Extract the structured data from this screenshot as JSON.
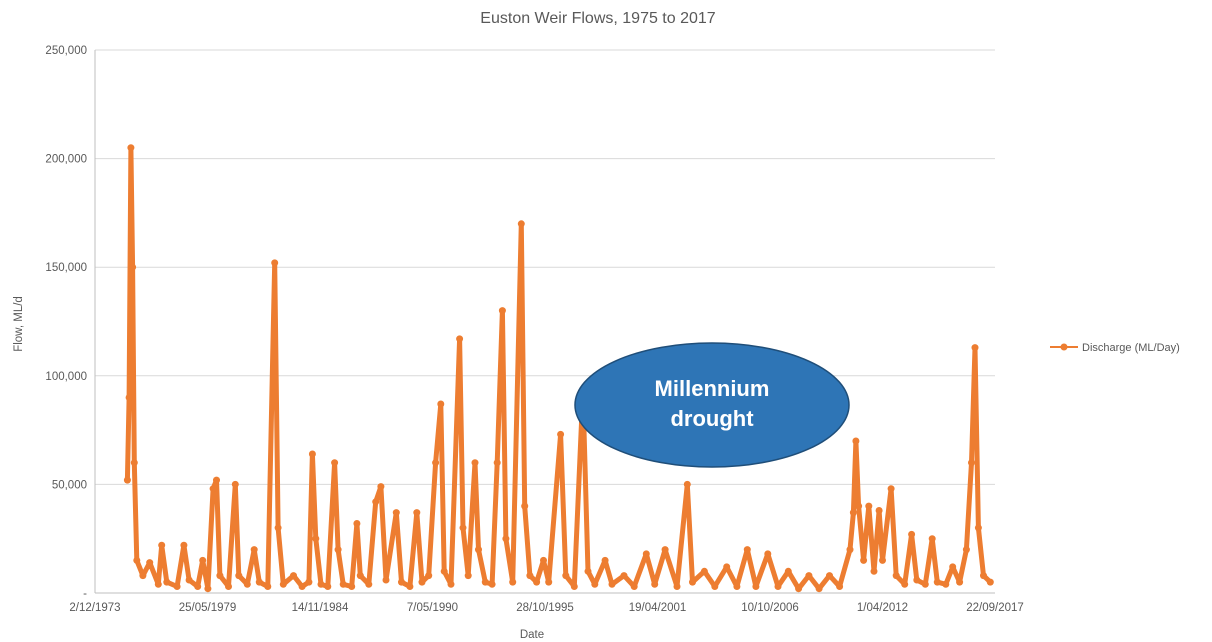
{
  "chart_data": {
    "type": "line",
    "title": "Euston Weir Flows, 1975 to 2017",
    "xlabel": "Date",
    "ylabel": "Flow, ML/d",
    "x_ticks": [
      "2/12/1973",
      "25/05/1979",
      "14/11/1984",
      "7/05/1990",
      "28/10/1995",
      "19/04/2001",
      "10/10/2006",
      "1/04/2012",
      "22/09/2017"
    ],
    "y_ticks": [
      "-",
      "50,000",
      "100,000",
      "150,000",
      "200,000",
      "250,000"
    ],
    "xlim": [
      "1973-12-02",
      "2017-09-22"
    ],
    "ylim": [
      0,
      250000
    ],
    "grid": true,
    "legend_position": "right",
    "colors": {
      "series": "#ED7D31",
      "grid": "#D9D9D9",
      "axis": "#BFBFBF",
      "annotation_fill": "#2E75B6",
      "annotation_stroke": "#1F4E79"
    },
    "annotation": {
      "line1": "Millennium",
      "line2": "drought"
    },
    "series": [
      {
        "name": "Discharge (ML/Day)",
        "points": [
          [
            "1975-07-01",
            52000
          ],
          [
            "1975-08-01",
            90000
          ],
          [
            "1975-09-01",
            205000
          ],
          [
            "1975-10-01",
            150000
          ],
          [
            "1975-11-01",
            60000
          ],
          [
            "1975-12-15",
            15000
          ],
          [
            "1976-04-01",
            8000
          ],
          [
            "1976-08-01",
            14000
          ],
          [
            "1977-01-01",
            4000
          ],
          [
            "1977-03-01",
            22000
          ],
          [
            "1977-06-01",
            5000
          ],
          [
            "1977-12-01",
            3000
          ],
          [
            "1978-04-01",
            22000
          ],
          [
            "1978-07-01",
            6000
          ],
          [
            "1978-12-01",
            3000
          ],
          [
            "1979-03-01",
            15000
          ],
          [
            "1979-06-01",
            2000
          ],
          [
            "1979-09-01",
            48000
          ],
          [
            "1979-11-01",
            52000
          ],
          [
            "1980-01-01",
            8000
          ],
          [
            "1980-06-01",
            3000
          ],
          [
            "1980-10-01",
            50000
          ],
          [
            "1980-12-01",
            8000
          ],
          [
            "1981-05-01",
            4000
          ],
          [
            "1981-09-01",
            20000
          ],
          [
            "1981-12-01",
            5000
          ],
          [
            "1982-05-01",
            3000
          ],
          [
            "1982-09-01",
            152000
          ],
          [
            "1982-11-01",
            30000
          ],
          [
            "1983-02-01",
            4000
          ],
          [
            "1983-08-01",
            8000
          ],
          [
            "1984-01-01",
            3000
          ],
          [
            "1984-05-01",
            5000
          ],
          [
            "1984-07-01",
            64000
          ],
          [
            "1984-09-01",
            25000
          ],
          [
            "1984-12-01",
            4000
          ],
          [
            "1985-04-01",
            3000
          ],
          [
            "1985-08-01",
            60000
          ],
          [
            "1985-10-01",
            20000
          ],
          [
            "1986-01-01",
            4000
          ],
          [
            "1986-06-01",
            3000
          ],
          [
            "1986-09-01",
            32000
          ],
          [
            "1986-11-01",
            8000
          ],
          [
            "1987-04-01",
            4000
          ],
          [
            "1987-08-01",
            42000
          ],
          [
            "1987-11-01",
            49000
          ],
          [
            "1988-02-01",
            6000
          ],
          [
            "1988-08-01",
            37000
          ],
          [
            "1988-11-01",
            5000
          ],
          [
            "1989-04-01",
            3000
          ],
          [
            "1989-08-01",
            37000
          ],
          [
            "1989-11-01",
            5000
          ],
          [
            "1990-03-01",
            8000
          ],
          [
            "1990-07-01",
            60000
          ],
          [
            "1990-10-01",
            87000
          ],
          [
            "1990-12-01",
            10000
          ],
          [
            "1991-04-01",
            4000
          ],
          [
            "1991-09-01",
            117000
          ],
          [
            "1991-11-01",
            30000
          ],
          [
            "1992-02-01",
            8000
          ],
          [
            "1992-06-01",
            60000
          ],
          [
            "1992-08-01",
            20000
          ],
          [
            "1992-12-01",
            5000
          ],
          [
            "1993-04-01",
            4000
          ],
          [
            "1993-07-01",
            60000
          ],
          [
            "1993-10-01",
            130000
          ],
          [
            "1993-12-01",
            25000
          ],
          [
            "1994-04-01",
            5000
          ],
          [
            "1994-09-01",
            170000
          ],
          [
            "1994-11-01",
            40000
          ],
          [
            "1995-02-01",
            8000
          ],
          [
            "1995-06-01",
            5000
          ],
          [
            "1995-10-01",
            15000
          ],
          [
            "1996-01-01",
            5000
          ],
          [
            "1996-08-01",
            73000
          ],
          [
            "1996-11-01",
            8000
          ],
          [
            "1997-04-01",
            3000
          ],
          [
            "1997-09-01",
            93000
          ],
          [
            "1997-12-01",
            10000
          ],
          [
            "1998-04-01",
            4000
          ],
          [
            "1998-10-01",
            15000
          ],
          [
            "1999-02-01",
            4000
          ],
          [
            "1999-09-01",
            8000
          ],
          [
            "2000-03-01",
            3000
          ],
          [
            "2000-10-01",
            18000
          ],
          [
            "2001-03-01",
            4000
          ],
          [
            "2001-09-01",
            20000
          ],
          [
            "2002-04-01",
            3000
          ],
          [
            "2002-10-01",
            50000
          ],
          [
            "2003-01-01",
            5000
          ],
          [
            "2003-08-01",
            10000
          ],
          [
            "2004-02-01",
            3000
          ],
          [
            "2004-09-01",
            12000
          ],
          [
            "2005-03-01",
            3000
          ],
          [
            "2005-09-01",
            20000
          ],
          [
            "2006-02-01",
            3000
          ],
          [
            "2006-09-01",
            18000
          ],
          [
            "2007-03-01",
            3000
          ],
          [
            "2007-09-01",
            10000
          ],
          [
            "2008-03-01",
            2000
          ],
          [
            "2008-09-01",
            8000
          ],
          [
            "2009-03-01",
            2000
          ],
          [
            "2009-09-01",
            8000
          ],
          [
            "2010-03-01",
            3000
          ],
          [
            "2010-09-01",
            20000
          ],
          [
            "2010-11-01",
            37000
          ],
          [
            "2010-12-15",
            70000
          ],
          [
            "2011-02-01",
            40000
          ],
          [
            "2011-05-01",
            15000
          ],
          [
            "2011-08-01",
            40000
          ],
          [
            "2011-11-01",
            10000
          ],
          [
            "2012-02-01",
            38000
          ],
          [
            "2012-04-01",
            15000
          ],
          [
            "2012-09-01",
            48000
          ],
          [
            "2012-12-01",
            8000
          ],
          [
            "2013-05-01",
            4000
          ],
          [
            "2013-09-01",
            27000
          ],
          [
            "2013-12-01",
            6000
          ],
          [
            "2014-05-01",
            4000
          ],
          [
            "2014-09-01",
            25000
          ],
          [
            "2014-12-01",
            5000
          ],
          [
            "2015-05-01",
            4000
          ],
          [
            "2015-09-01",
            12000
          ],
          [
            "2016-01-01",
            5000
          ],
          [
            "2016-05-01",
            20000
          ],
          [
            "2016-08-01",
            60000
          ],
          [
            "2016-10-01",
            113000
          ],
          [
            "2016-12-01",
            30000
          ],
          [
            "2017-03-01",
            8000
          ],
          [
            "2017-07-01",
            5000
          ]
        ]
      }
    ]
  }
}
